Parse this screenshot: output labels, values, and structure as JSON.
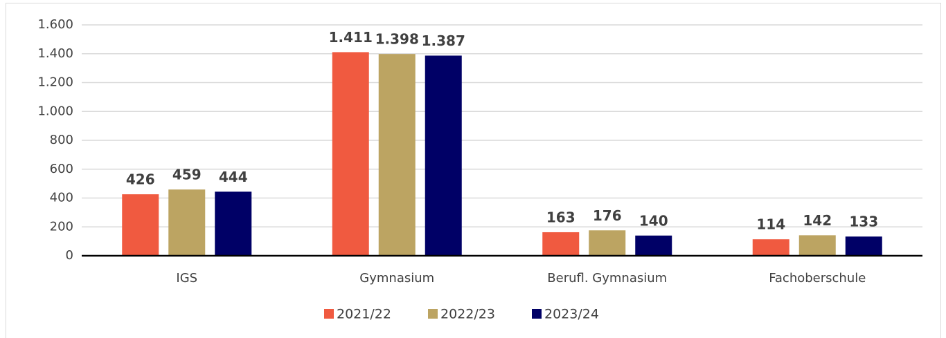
{
  "chart_data": {
    "type": "bar",
    "categories": [
      "IGS",
      "Gymnasium",
      "Berufl. Gymnasium",
      "Fachoberschule"
    ],
    "series": [
      {
        "name": "2021/22",
        "color": "#f05a40",
        "values": [
          426,
          1411,
          163,
          114
        ],
        "value_labels": [
          "426",
          "1.411",
          "163",
          "114"
        ]
      },
      {
        "name": "2022/23",
        "color": "#bca462",
        "values": [
          459,
          1398,
          176,
          142
        ],
        "value_labels": [
          "459",
          "1.398",
          "176",
          "142"
        ]
      },
      {
        "name": "2023/24",
        "color": "#000066",
        "values": [
          444,
          1387,
          140,
          133
        ],
        "value_labels": [
          "444",
          "1.387",
          "140",
          "133"
        ]
      }
    ],
    "ylim": [
      0,
      1600
    ],
    "yticks": [
      0,
      200,
      400,
      600,
      800,
      {
        "value": 1000,
        "label": "1.000"
      },
      {
        "value": 1200,
        "label": "1.200"
      },
      {
        "value": 1400,
        "label": "1.400"
      },
      {
        "value": 1600,
        "label": "1.600"
      }
    ],
    "grid": true,
    "legend": "bottom"
  }
}
